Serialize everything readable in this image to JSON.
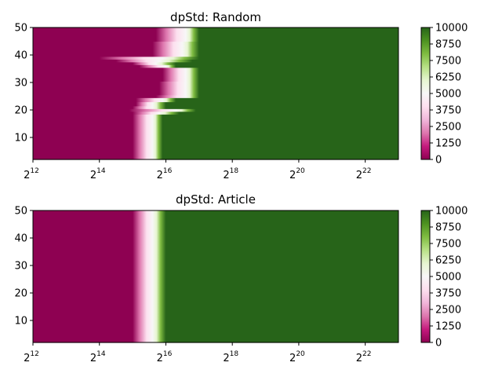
{
  "chart_data": [
    {
      "type": "heatmap",
      "title": "dpStd: Random",
      "x_scale": "log2",
      "x_ticks": [
        12,
        14,
        16,
        18,
        20,
        22
      ],
      "x_tick_base": "2",
      "xlim_log2": [
        12,
        23
      ],
      "ylim": [
        2,
        50
      ],
      "y_ticks": [
        10,
        20,
        30,
        40,
        50
      ],
      "colorbar_ticks": [
        "0",
        "1250",
        "2500",
        "3750",
        "5000",
        "6250",
        "7500",
        "8750",
        "10000"
      ],
      "colorbar_range": [
        0,
        10000
      ],
      "colormap": [
        "#8e0152",
        "#c51b7d",
        "#de77ae",
        "#f1b6da",
        "#fde0ef",
        "#f7f7f7",
        "#e6f5d0",
        "#b8e186",
        "#7fbc41",
        "#4d9221",
        "#276419"
      ],
      "rows": [
        {
          "y": 2,
          "low": 15.0,
          "mid": 15.6,
          "high": 15.9
        },
        {
          "y": 18,
          "low": 15.0,
          "mid": 15.6,
          "high": 15.9
        },
        {
          "y": 19,
          "low": 15.0,
          "mid": 15.8,
          "high": 16.4
        },
        {
          "y": 20,
          "low": 14.9,
          "mid": 16.3,
          "high": 16.9
        },
        {
          "y": 21,
          "low": 15.0,
          "mid": 15.6,
          "high": 16.0
        },
        {
          "y": 22,
          "low": 15.1,
          "mid": 15.6,
          "high": 16.0
        },
        {
          "y": 24,
          "low": 15.1,
          "mid": 15.9,
          "high": 16.3
        },
        {
          "y": 25,
          "low": 15.7,
          "mid": 16.6,
          "high": 17.0
        },
        {
          "y": 26,
          "low": 15.8,
          "mid": 16.6,
          "high": 17.0
        },
        {
          "y": 35,
          "low": 15.9,
          "mid": 16.6,
          "high": 17.0
        },
        {
          "y": 36,
          "low": 15.2,
          "mid": 16.0,
          "high": 16.3
        },
        {
          "y": 37,
          "low": 15.0,
          "mid": 15.7,
          "high": 16.3
        },
        {
          "y": 38,
          "low": 14.5,
          "mid": 15.8,
          "high": 16.8
        },
        {
          "y": 39,
          "low": 14.0,
          "mid": 15.9,
          "high": 17.0
        },
        {
          "y": 40,
          "low": 15.6,
          "mid": 16.5,
          "high": 17.0
        },
        {
          "y": 50,
          "low": 15.7,
          "mid": 16.6,
          "high": 17.0
        }
      ]
    },
    {
      "type": "heatmap",
      "title": "dpStd: Article",
      "x_scale": "log2",
      "x_ticks": [
        12,
        14,
        16,
        18,
        20,
        22
      ],
      "x_tick_base": "2",
      "xlim_log2": [
        12,
        23
      ],
      "ylim": [
        2,
        50
      ],
      "y_ticks": [
        10,
        20,
        30,
        40,
        50
      ],
      "colorbar_ticks": [
        "0",
        "1250",
        "2500",
        "3750",
        "5000",
        "6250",
        "7500",
        "8750",
        "10000"
      ],
      "colorbar_range": [
        0,
        10000
      ],
      "colormap": [
        "#8e0152",
        "#c51b7d",
        "#de77ae",
        "#f1b6da",
        "#fde0ef",
        "#f7f7f7",
        "#e6f5d0",
        "#b8e186",
        "#7fbc41",
        "#4d9221",
        "#276419"
      ],
      "rows": [
        {
          "y": 2,
          "low": 15.0,
          "mid": 15.6,
          "high": 16.0
        },
        {
          "y": 50,
          "low": 15.0,
          "mid": 15.6,
          "high": 16.0
        }
      ]
    }
  ]
}
